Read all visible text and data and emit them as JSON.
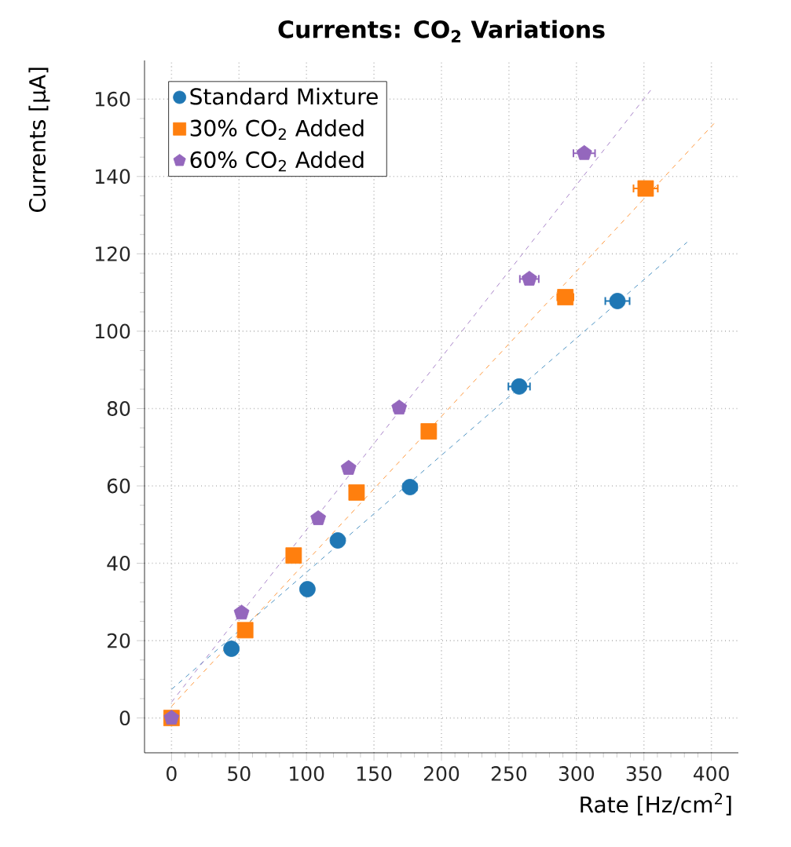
{
  "chart_data": {
    "type": "scatter",
    "title": "Currents: CO$_{2}$ Variations",
    "xlabel": "Rate [Hz/cm$^{2}$]",
    "ylabel": "Currents [µA]",
    "xlim": [
      -20,
      420
    ],
    "ylim": [
      -9,
      170
    ],
    "xticks": [
      0,
      50,
      100,
      150,
      200,
      250,
      300,
      350,
      400
    ],
    "yticks": [
      0,
      20,
      40,
      60,
      80,
      100,
      120,
      140,
      160
    ],
    "grid": true,
    "legend": "top left",
    "series": [
      {
        "name": "Standard Mixture",
        "color": "#1f77b4",
        "marker": "circle",
        "x": [
          44.4,
          100.7,
          123.2,
          176.7,
          257.6,
          330.4
        ],
        "values": [
          17.9,
          33.3,
          45.9,
          59.7,
          85.7,
          107.8
        ],
        "xerrors": [
          null,
          null,
          null,
          5,
          8,
          9
        ]
      },
      {
        "name": "30% CO$_{2}$ Added",
        "color": "#ff7f0e",
        "marker": "square",
        "x": [
          0,
          54.6,
          90.5,
          137.1,
          190.6,
          291.8,
          351.3
        ],
        "values": [
          0,
          22.7,
          42.0,
          58.3,
          74.1,
          108.8,
          136.9
        ],
        "xerrors": [
          null,
          null,
          null,
          null,
          5,
          6,
          9
        ]
      },
      {
        "name": "60% CO$_{2}$ Added",
        "color": "#9467bd",
        "x": [
          0,
          51.9,
          108.7,
          131.2,
          168.7,
          265.1,
          305.8
        ],
        "values": [
          0,
          27.2,
          51.6,
          64.6,
          80.2,
          113.5,
          146.0
        ],
        "xerrors": [
          null,
          null,
          null,
          null,
          4,
          7,
          8
        ]
      },
      {
        "type": "line",
        "color": "#1f77b4",
        "line_style": "dashed",
        "x": [
          0,
          382
        ],
        "values": [
          7.4,
          123.0
        ]
      },
      {
        "type": "line",
        "color": "#ff7f0e",
        "line_style": "dashed",
        "x": [
          0,
          402
        ],
        "values": [
          3.0,
          153.7
        ]
      },
      {
        "type": "line",
        "color": "#9467bd",
        "line_style": "dashed",
        "x": [
          0,
          355
        ],
        "values": [
          4.1,
          162.3
        ]
      }
    ]
  }
}
